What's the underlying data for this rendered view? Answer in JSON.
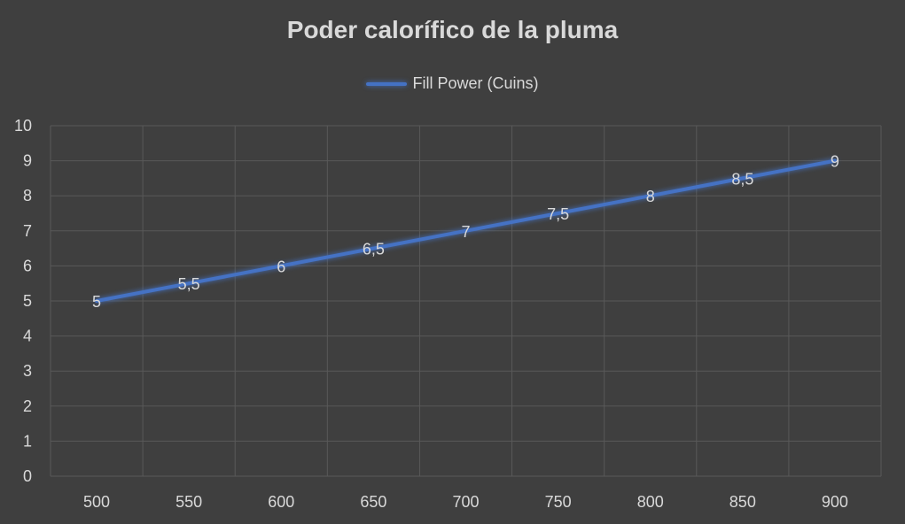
{
  "chart_data": {
    "type": "line",
    "title": "Poder calorífico de la pluma",
    "x": [
      500,
      550,
      600,
      650,
      700,
      750,
      800,
      850,
      900
    ],
    "series": [
      {
        "name": "Fill Power (Cuins)",
        "values": [
          5,
          5.5,
          6,
          6.5,
          7,
          7.5,
          8,
          8.5,
          9
        ],
        "data_labels": [
          "5",
          "5,5",
          "6",
          "6,5",
          "7",
          "7,5",
          "8",
          "8,5",
          "9"
        ]
      }
    ],
    "x_tick_labels": [
      "500",
      "550",
      "600",
      "650",
      "700",
      "750",
      "800",
      "850",
      "900"
    ],
    "y_tick_labels": [
      "0",
      "1",
      "2",
      "3",
      "4",
      "5",
      "6",
      "7",
      "8",
      "9",
      "10"
    ],
    "ylim": [
      0,
      10
    ],
    "grid": true,
    "legend_position": "top",
    "colors": {
      "background": "#3f3f3f",
      "series": "#4472c4",
      "grid": "#595959",
      "text": "#d9d9d9"
    }
  }
}
